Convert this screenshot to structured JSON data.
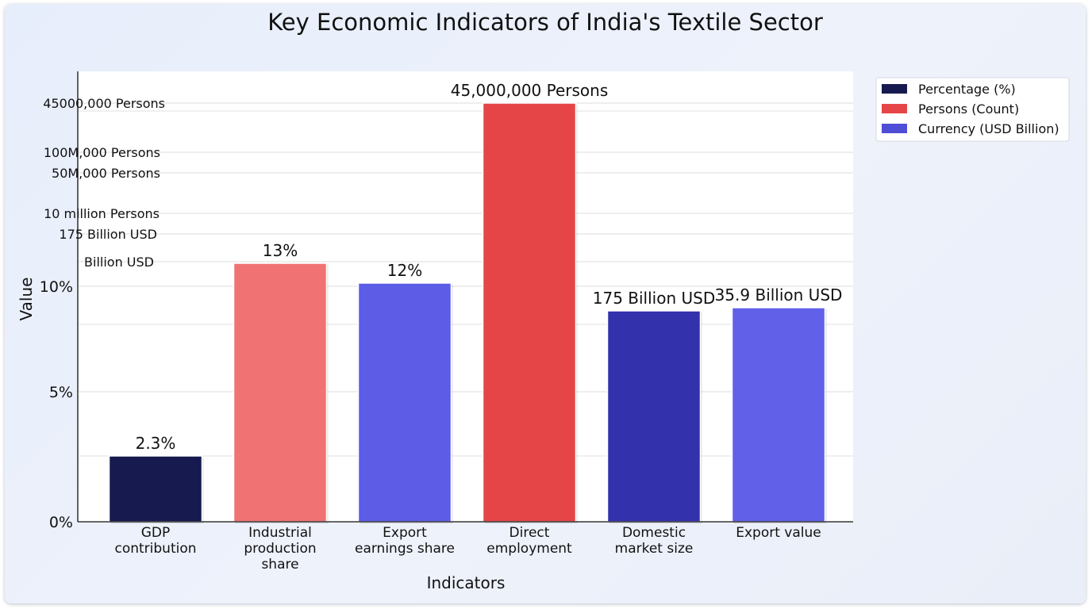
{
  "chart_data": {
    "type": "bar",
    "title": "Key Economic Indicators of India's Textile Sector",
    "xlabel": "Indicators",
    "ylabel": "Value",
    "categories": [
      [
        "GDP",
        "contribution"
      ],
      [
        "Industrial",
        "production",
        "share"
      ],
      [
        "Export",
        "earnings share"
      ],
      [
        "Direct",
        "employment"
      ],
      [
        "Domestic",
        "market size"
      ],
      [
        "Export value"
      ]
    ],
    "values": [
      2.3,
      13,
      12,
      45000000,
      175,
      35.9
    ],
    "bar_labels": [
      "2.3%",
      "13%",
      "12%",
      "45,000,000 Persons",
      "175 Billion USD",
      "35.9 Billion USD"
    ],
    "bar_colors": [
      "#171a4f",
      "#f07272",
      "#5d5ce6",
      "#e54546",
      "#3431ad",
      "#6160e8"
    ],
    "y_ticks": [
      "0%",
      "5%",
      "10%",
      "Billion USD",
      "175 Billion USD",
      "10 million Persons",
      "50M,000 Persons",
      "100M,000 Persons",
      "45000,000 Persons"
    ],
    "grid": true,
    "legend_position": "top-right",
    "legend": [
      {
        "label": "Percentage (%)",
        "color": "#171a4f"
      },
      {
        "label": "Persons (Count)",
        "color": "#e54546"
      },
      {
        "label": "Currency (USD Billion)",
        "color": "#4f4ed6"
      }
    ]
  }
}
